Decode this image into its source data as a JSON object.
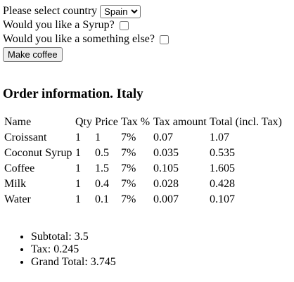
{
  "form": {
    "country_label": "Please select country",
    "country_selected": "Spain",
    "syrup_label": "Would you like a Syrup?",
    "something_else_label": "Would you like a something else?",
    "make_coffee_label": "Make coffee"
  },
  "order": {
    "heading": "Order information. Italy",
    "columns": [
      "Name",
      "Qty",
      "Price",
      "Tax %",
      "Tax amount",
      "Total (incl. Tax)"
    ],
    "rows": [
      [
        "Croissant",
        "1",
        "1",
        "7%",
        "0.07",
        "1.07"
      ],
      [
        "Coconut Syrup",
        "1",
        "0.5",
        "7%",
        "0.035",
        "0.535"
      ],
      [
        "Coffee",
        "1",
        "1.5",
        "7%",
        "0.105",
        "1.605"
      ],
      [
        "Milk",
        "1",
        "0.4",
        "7%",
        "0.028",
        "0.428"
      ],
      [
        "Water",
        "1",
        "0.1",
        "7%",
        "0.007",
        "0.107"
      ]
    ]
  },
  "summary": {
    "subtotal": "Subtotal: 3.5",
    "tax": "Tax: 0.245",
    "grand_total": "Grand Total: 3.745"
  }
}
